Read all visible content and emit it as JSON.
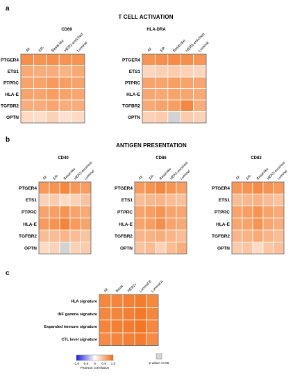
{
  "panel_letters": {
    "a": "a",
    "b": "b",
    "c": "c"
  },
  "section_titles": {
    "a": "T CELL ACTIVATION",
    "b": "ANTIGEN PRESENTATION"
  },
  "colors": {
    "low": "#1d1ddc",
    "mid": "#ffffff",
    "high": "#f26a12",
    "ns": "#d3d3d3",
    "border": "#5a5a5a"
  },
  "legend": {
    "ticks": [
      "-1.0",
      "-0.5",
      "0",
      "0.5",
      "1.0"
    ],
    "title": "Pearson correlation",
    "ns_label": "p value >0.05"
  },
  "chart_data": [
    {
      "type": "heatmap",
      "title": "CD69",
      "columns": [
        "All",
        "ER-",
        "Basal-like",
        "HER2-enriched",
        "Luminal"
      ],
      "rows": [
        "PTGER4",
        "ETS1",
        "PTPRC",
        "HLA-E",
        "TGFBR2",
        "OPTN"
      ],
      "values": [
        [
          0.75,
          0.72,
          0.75,
          0.72,
          0.72
        ],
        [
          0.58,
          0.55,
          0.55,
          0.52,
          0.58
        ],
        [
          0.62,
          0.62,
          0.68,
          0.65,
          0.62
        ],
        [
          0.62,
          0.6,
          0.65,
          0.62,
          0.6
        ],
        [
          0.55,
          0.55,
          0.6,
          0.55,
          0.55
        ],
        [
          0.25,
          0.22,
          0.3,
          0.2,
          0.25
        ]
      ]
    },
    {
      "type": "heatmap",
      "title": "HLA-DRA",
      "columns": [
        "All",
        "ER-",
        "Basal-like",
        "HER2-enriched",
        "Luminal"
      ],
      "rows": [
        "PTGER4",
        "ETS1",
        "PTPRC",
        "HLA-E",
        "TGFBR2",
        "OPTN"
      ],
      "values": [
        [
          0.72,
          0.75,
          0.78,
          0.75,
          0.7
        ],
        [
          0.28,
          0.32,
          0.35,
          0.3,
          0.28
        ],
        [
          0.62,
          0.62,
          0.65,
          0.62,
          0.6
        ],
        [
          0.6,
          0.58,
          0.62,
          0.6,
          0.58
        ],
        [
          0.58,
          0.62,
          0.65,
          0.8,
          0.55
        ],
        [
          0.3,
          0.35,
          null,
          0.35,
          0.3
        ]
      ]
    },
    {
      "type": "heatmap",
      "title": "CD40",
      "columns": [
        "All",
        "ER-",
        "Basal-like",
        "HER2-enriched",
        "Luminal"
      ],
      "rows": [
        "PTGER4",
        "ETS1",
        "PTPRC",
        "HLA-E",
        "TGFBR2",
        "OPTN"
      ],
      "values": [
        [
          0.68,
          0.72,
          0.8,
          0.7,
          0.65
        ],
        [
          0.3,
          0.35,
          0.25,
          0.3,
          0.4
        ],
        [
          0.62,
          0.65,
          0.72,
          0.62,
          0.58
        ],
        [
          0.68,
          0.72,
          0.82,
          0.68,
          0.62
        ],
        [
          0.45,
          0.45,
          0.5,
          0.45,
          0.4
        ],
        [
          0.25,
          0.3,
          null,
          0.3,
          0.35
        ]
      ]
    },
    {
      "type": "heatmap",
      "title": "CD86",
      "columns": [
        "All",
        "ER-",
        "Basal-like",
        "HER2-enriched",
        "Luminal"
      ],
      "rows": [
        "PTGER4",
        "ETS1",
        "PTPRC",
        "HLA-E",
        "TGFBR2",
        "OPTN"
      ],
      "values": [
        [
          0.68,
          0.72,
          0.8,
          0.72,
          0.65
        ],
        [
          0.45,
          0.48,
          0.5,
          0.45,
          0.42
        ],
        [
          0.62,
          0.65,
          0.72,
          0.62,
          0.6
        ],
        [
          0.62,
          0.65,
          0.75,
          0.62,
          0.58
        ],
        [
          0.5,
          0.52,
          0.55,
          0.5,
          0.45
        ],
        [
          0.4,
          0.45,
          0.3,
          0.45,
          0.55
        ]
      ]
    },
    {
      "type": "heatmap",
      "title": "CD83",
      "columns": [
        "All",
        "ER-",
        "Basal-like",
        "HER2-enriched",
        "Luminal"
      ],
      "rows": [
        "PTGER4",
        "ETS1",
        "PTPRC",
        "HLA-E",
        "TGFBR2",
        "OPTN"
      ],
      "values": [
        [
          0.7,
          0.72,
          0.78,
          0.72,
          0.68
        ],
        [
          0.45,
          0.48,
          0.52,
          0.45,
          0.4
        ],
        [
          0.62,
          0.65,
          0.72,
          0.62,
          0.58
        ],
        [
          0.6,
          0.62,
          0.72,
          0.6,
          0.55
        ],
        [
          0.5,
          0.52,
          0.58,
          0.5,
          0.45
        ],
        [
          0.35,
          0.38,
          0.25,
          0.38,
          0.42
        ]
      ]
    },
    {
      "type": "heatmap",
      "title": "",
      "columns": [
        "All",
        "Basal",
        "HER2+",
        "Luminal B",
        "Luminal A"
      ],
      "rows": [
        "HLA signature",
        "INF gamma signature",
        "Expanded immune signature",
        "CTL level signature"
      ],
      "values": [
        [
          0.8,
          0.82,
          0.85,
          0.88,
          0.8
        ],
        [
          0.8,
          0.82,
          0.85,
          0.9,
          0.8
        ],
        [
          0.82,
          0.85,
          0.88,
          0.92,
          0.8
        ],
        [
          0.78,
          0.82,
          0.85,
          0.88,
          0.78
        ]
      ]
    }
  ]
}
